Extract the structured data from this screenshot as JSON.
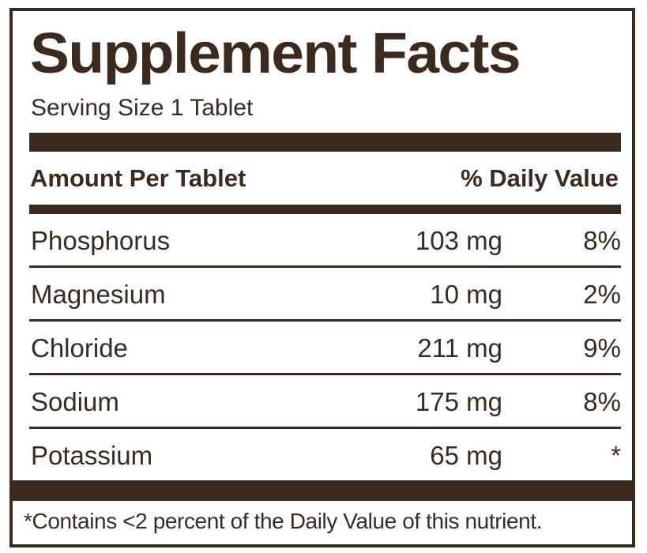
{
  "label": {
    "title": "Supplement Facts",
    "serving_size": "Serving Size 1 Tablet",
    "header_amount": "Amount Per Tablet",
    "header_dv": "% Daily Value",
    "rows": [
      {
        "nutrient": "Phosphorus",
        "amount": "103 mg",
        "dv": "8%"
      },
      {
        "nutrient": "Magnesium",
        "amount": "10 mg",
        "dv": "2%"
      },
      {
        "nutrient": "Chloride",
        "amount": "211 mg",
        "dv": "9%"
      },
      {
        "nutrient": "Sodium",
        "amount": "175 mg",
        "dv": "8%"
      },
      {
        "nutrient": "Potassium",
        "amount": "65 mg",
        "dv": "*"
      }
    ],
    "footnote": "*Contains <2 percent of the Daily Value of this nutrient."
  },
  "colors": {
    "ink": "#3c2a1e",
    "background": "#ffffff"
  }
}
